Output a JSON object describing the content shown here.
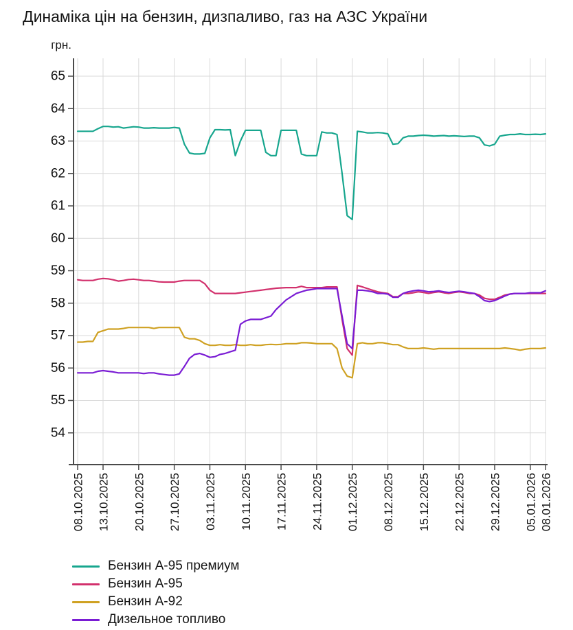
{
  "chart_data": {
    "type": "line",
    "title": "Динаміка цін на бензин, дизпаливо, газ на АЗС України",
    "y_unit": "грн.",
    "grid": true,
    "legend_position": "bottom-left",
    "ylim": [
      53.0,
      65.6
    ],
    "yticks": [
      54,
      55,
      56,
      57,
      58,
      59,
      60,
      61,
      62,
      63,
      64,
      65
    ],
    "x_total_days": 92,
    "x_tick_days": [
      0,
      5,
      12,
      19,
      26,
      33,
      40,
      47,
      54,
      61,
      68,
      75,
      82,
      89,
      92
    ],
    "x_tick_labels": [
      "08.10.2025",
      "13.10.2025",
      "20.10.2025",
      "27.10.2025",
      "03.11.2025",
      "10.11.2025",
      "17.11.2025",
      "24.11.2025",
      "01.12.2025",
      "08.12.2025",
      "15.12.2025",
      "22.12.2025",
      "29.12.2025",
      "05.01.2026",
      "08.01.2026"
    ],
    "axis_color": "#4a4a4a",
    "grid_color": "#d9d9d9",
    "series": [
      {
        "name": "Бензин А-95 премиум",
        "color": "#17a68e",
        "values": [
          63.3,
          63.3,
          63.3,
          63.3,
          63.38,
          63.45,
          63.45,
          63.43,
          63.44,
          63.4,
          63.42,
          63.44,
          63.43,
          63.4,
          63.4,
          63.41,
          63.4,
          63.4,
          63.4,
          63.42,
          63.4,
          62.9,
          62.63,
          62.6,
          62.6,
          62.62,
          63.1,
          63.35,
          63.35,
          63.34,
          63.35,
          62.55,
          63.0,
          63.33,
          63.33,
          63.33,
          63.33,
          62.65,
          62.55,
          62.55,
          63.33,
          63.33,
          63.33,
          63.33,
          62.6,
          62.55,
          62.55,
          62.55,
          63.28,
          63.25,
          63.25,
          63.2,
          62.0,
          60.7,
          60.58,
          63.3,
          63.28,
          63.25,
          63.25,
          63.26,
          63.25,
          63.22,
          62.9,
          62.92,
          63.1,
          63.15,
          63.15,
          63.17,
          63.18,
          63.17,
          63.15,
          63.16,
          63.17,
          63.15,
          63.16,
          63.15,
          63.14,
          63.15,
          63.15,
          63.1,
          62.88,
          62.85,
          62.9,
          63.15,
          63.18,
          63.2,
          63.2,
          63.22,
          63.2,
          63.2,
          63.21,
          63.2,
          63.22
        ]
      },
      {
        "name": "Бензин А-95",
        "color": "#d2306c",
        "values": [
          58.72,
          58.7,
          58.7,
          58.7,
          58.74,
          58.76,
          58.75,
          58.72,
          58.68,
          58.7,
          58.73,
          58.74,
          58.72,
          58.7,
          58.7,
          58.68,
          58.66,
          58.65,
          58.65,
          58.65,
          58.68,
          58.7,
          58.7,
          58.7,
          58.7,
          58.6,
          58.4,
          58.3,
          58.3,
          58.3,
          58.3,
          58.3,
          58.32,
          58.34,
          58.36,
          58.38,
          58.4,
          58.42,
          58.44,
          58.46,
          58.47,
          58.48,
          58.48,
          58.48,
          58.52,
          58.48,
          58.48,
          58.48,
          58.48,
          58.5,
          58.5,
          58.5,
          57.5,
          56.6,
          56.4,
          58.55,
          58.5,
          58.45,
          58.4,
          58.35,
          58.32,
          58.3,
          58.2,
          58.2,
          58.3,
          58.3,
          58.32,
          58.35,
          58.33,
          58.3,
          58.33,
          58.35,
          58.32,
          58.3,
          58.33,
          58.35,
          58.33,
          58.3,
          58.3,
          58.25,
          58.15,
          58.12,
          58.12,
          58.18,
          58.25,
          58.28,
          58.3,
          58.3,
          58.3,
          58.3,
          58.3,
          58.3,
          58.3
        ]
      },
      {
        "name": "Бензин А-92",
        "color": "#cfa122",
        "values": [
          56.8,
          56.8,
          56.82,
          56.82,
          57.1,
          57.15,
          57.2,
          57.2,
          57.2,
          57.22,
          57.25,
          57.25,
          57.25,
          57.25,
          57.25,
          57.22,
          57.25,
          57.25,
          57.25,
          57.25,
          57.25,
          56.95,
          56.9,
          56.9,
          56.85,
          56.75,
          56.7,
          56.7,
          56.72,
          56.7,
          56.7,
          56.72,
          56.7,
          56.7,
          56.72,
          56.7,
          56.7,
          56.72,
          56.73,
          56.72,
          56.73,
          56.75,
          56.75,
          56.75,
          56.78,
          56.78,
          56.77,
          56.75,
          56.75,
          56.75,
          56.75,
          56.6,
          56.0,
          55.75,
          55.7,
          56.75,
          56.78,
          56.75,
          56.75,
          56.78,
          56.78,
          56.75,
          56.72,
          56.72,
          56.65,
          56.6,
          56.6,
          56.6,
          56.62,
          56.6,
          56.58,
          56.6,
          56.6,
          56.6,
          56.6,
          56.6,
          56.6,
          56.6,
          56.6,
          56.6,
          56.6,
          56.6,
          56.6,
          56.6,
          56.62,
          56.6,
          56.58,
          56.55,
          56.58,
          56.6,
          56.6,
          56.6,
          56.62
        ]
      },
      {
        "name": "Дизельное топливо",
        "color": "#7a1cd4",
        "values": [
          55.85,
          55.85,
          55.85,
          55.85,
          55.9,
          55.92,
          55.9,
          55.88,
          55.85,
          55.85,
          55.85,
          55.85,
          55.85,
          55.83,
          55.85,
          55.85,
          55.82,
          55.8,
          55.78,
          55.78,
          55.82,
          56.05,
          56.3,
          56.42,
          56.45,
          56.4,
          56.33,
          56.35,
          56.42,
          56.45,
          56.5,
          56.55,
          57.35,
          57.45,
          57.5,
          57.5,
          57.5,
          57.55,
          57.6,
          57.8,
          57.95,
          58.1,
          58.2,
          58.3,
          58.35,
          58.4,
          58.42,
          58.45,
          58.45,
          58.45,
          58.45,
          58.45,
          57.6,
          56.75,
          56.6,
          58.4,
          58.4,
          58.38,
          58.35,
          58.3,
          58.3,
          58.28,
          58.18,
          58.18,
          58.3,
          58.35,
          58.38,
          58.4,
          58.38,
          58.35,
          58.36,
          58.38,
          58.35,
          58.33,
          58.35,
          58.37,
          58.35,
          58.32,
          58.3,
          58.2,
          58.08,
          58.05,
          58.08,
          58.15,
          58.22,
          58.28,
          58.3,
          58.3,
          58.3,
          58.32,
          58.32,
          58.32,
          58.38
        ]
      }
    ]
  }
}
